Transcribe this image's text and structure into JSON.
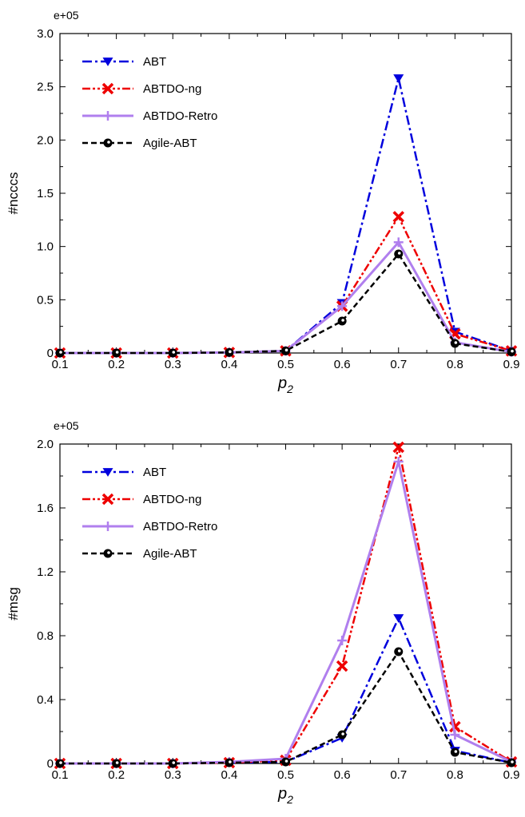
{
  "chart_data": [
    {
      "type": "line",
      "ylabel": "#ncccs",
      "xlabel_main": "p",
      "xlabel_sub": "2",
      "y_multiplier": "e+05",
      "x": [
        0.1,
        0.2,
        0.3,
        0.4,
        0.5,
        0.6,
        0.7,
        0.8,
        0.9
      ],
      "x_ticks": [
        "0.1",
        "0.2",
        "0.3",
        "0.4",
        "0.5",
        "0.6",
        "0.7",
        "0.8",
        "0.9"
      ],
      "xlim": [
        0.1,
        0.9
      ],
      "ylim": [
        0,
        3.0
      ],
      "y_ticks": [
        "0",
        "0.5",
        "1.0",
        "1.5",
        "2.0",
        "2.5",
        "3.0"
      ],
      "grid": false,
      "legend_position": "top-left",
      "series": [
        {
          "name": "ABT",
          "color": "#0000dd",
          "dash": "dashdot",
          "marker": "triangle-down",
          "values": [
            0,
            0,
            0,
            0.005,
            0.02,
            0.47,
            2.58,
            0.2,
            0.02
          ]
        },
        {
          "name": "ABTDO-ng",
          "color": "#ee0000",
          "dash": "dashdotdot",
          "marker": "x",
          "values": [
            0,
            0,
            0,
            0.005,
            0.02,
            0.44,
            1.28,
            0.18,
            0.02
          ]
        },
        {
          "name": "ABTDO-Retro",
          "color": "#b07fee",
          "dash": "solid",
          "marker": "plus",
          "values": [
            0,
            0,
            0,
            0.005,
            0.02,
            0.44,
            1.04,
            0.1,
            0.01
          ]
        },
        {
          "name": "Agile-ABT",
          "color": "#000000",
          "dash": "dashed",
          "marker": "circle",
          "values": [
            0,
            0,
            0,
            0.005,
            0.02,
            0.3,
            0.93,
            0.09,
            0.01
          ]
        }
      ]
    },
    {
      "type": "line",
      "ylabel": "#msg",
      "xlabel_main": "p",
      "xlabel_sub": "2",
      "y_multiplier": "e+05",
      "x": [
        0.1,
        0.2,
        0.3,
        0.4,
        0.5,
        0.6,
        0.7,
        0.8,
        0.9
      ],
      "x_ticks": [
        "0.1",
        "0.2",
        "0.3",
        "0.4",
        "0.5",
        "0.6",
        "0.7",
        "0.8",
        "0.9"
      ],
      "xlim": [
        0.1,
        0.9
      ],
      "ylim": [
        0,
        2.0
      ],
      "y_ticks": [
        "0",
        "0.4",
        "0.8",
        "1.2",
        "1.6",
        "2.0"
      ],
      "grid": false,
      "legend_position": "top-left",
      "series": [
        {
          "name": "ABT",
          "color": "#0000dd",
          "dash": "dashdot",
          "marker": "triangle-down",
          "values": [
            0,
            0,
            0,
            0.005,
            0.01,
            0.16,
            0.91,
            0.08,
            0.005
          ]
        },
        {
          "name": "ABTDO-ng",
          "color": "#ee0000",
          "dash": "dashdotdot",
          "marker": "x",
          "values": [
            0,
            0,
            0,
            0.005,
            0.02,
            0.61,
            1.98,
            0.23,
            0.01
          ]
        },
        {
          "name": "ABTDO-Retro",
          "color": "#b07fee",
          "dash": "solid",
          "marker": "plus",
          "values": [
            0,
            0,
            0,
            0.01,
            0.03,
            0.77,
            1.89,
            0.18,
            0.01
          ]
        },
        {
          "name": "Agile-ABT",
          "color": "#000000",
          "dash": "dashed",
          "marker": "circle",
          "values": [
            0,
            0,
            0,
            0.005,
            0.01,
            0.18,
            0.7,
            0.07,
            0.005
          ]
        }
      ]
    }
  ]
}
